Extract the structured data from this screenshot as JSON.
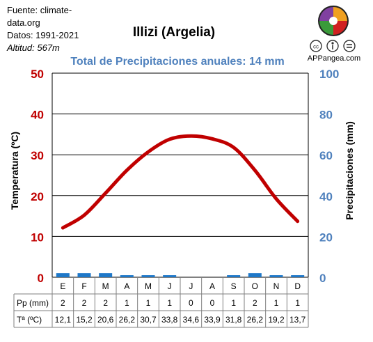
{
  "source": {
    "line1": "Fuente: climate-",
    "line2": "data.org",
    "line3": "Datos: 1991-2021",
    "line4": "Altitud: 567m"
  },
  "brand": "APPangea.com",
  "chart_data": {
    "type": "climograph",
    "title": "Illizi (Argelia)",
    "subtitle": "Total de Precipitaciones anuales: 14 mm",
    "ylabel_left": "Temperatura (ºC)",
    "ylabel_right": "Precipitaciones (mm)",
    "ylim_left": [
      0,
      50
    ],
    "ylim_right": [
      0,
      100
    ],
    "left_ticks": [
      "0",
      "10",
      "20",
      "30",
      "40",
      "50"
    ],
    "right_ticks": [
      "0",
      "20",
      "40",
      "60",
      "80",
      "100"
    ],
    "grid": true,
    "categories": [
      "E",
      "F",
      "M",
      "A",
      "M",
      "J",
      "J",
      "A",
      "S",
      "O",
      "N",
      "D"
    ],
    "series": [
      {
        "name": "Pp (mm)",
        "kind": "bar",
        "axis": "right",
        "color": "#1f78c8",
        "values": [
          2,
          2,
          2,
          1,
          1,
          1,
          0,
          0,
          1,
          2,
          1,
          1
        ]
      },
      {
        "name": "Tª (ºC)",
        "kind": "line",
        "axis": "left",
        "color": "#c00000",
        "values": [
          12.1,
          15.2,
          20.6,
          26.2,
          30.7,
          33.8,
          34.6,
          33.9,
          31.8,
          26.2,
          19.2,
          13.7
        ]
      }
    ],
    "table": {
      "row_labels": [
        "Pp (mm)",
        "Tª (ºC)"
      ],
      "pp_text": [
        "2",
        "2",
        "2",
        "1",
        "1",
        "1",
        "0",
        "0",
        "1",
        "2",
        "1",
        "1"
      ],
      "temp_text": [
        "12,1",
        "15,2",
        "20,6",
        "26,2",
        "30,7",
        "33,8",
        "34,6",
        "33,9",
        "31,8",
        "26,2",
        "19,2",
        "13,7"
      ]
    }
  }
}
